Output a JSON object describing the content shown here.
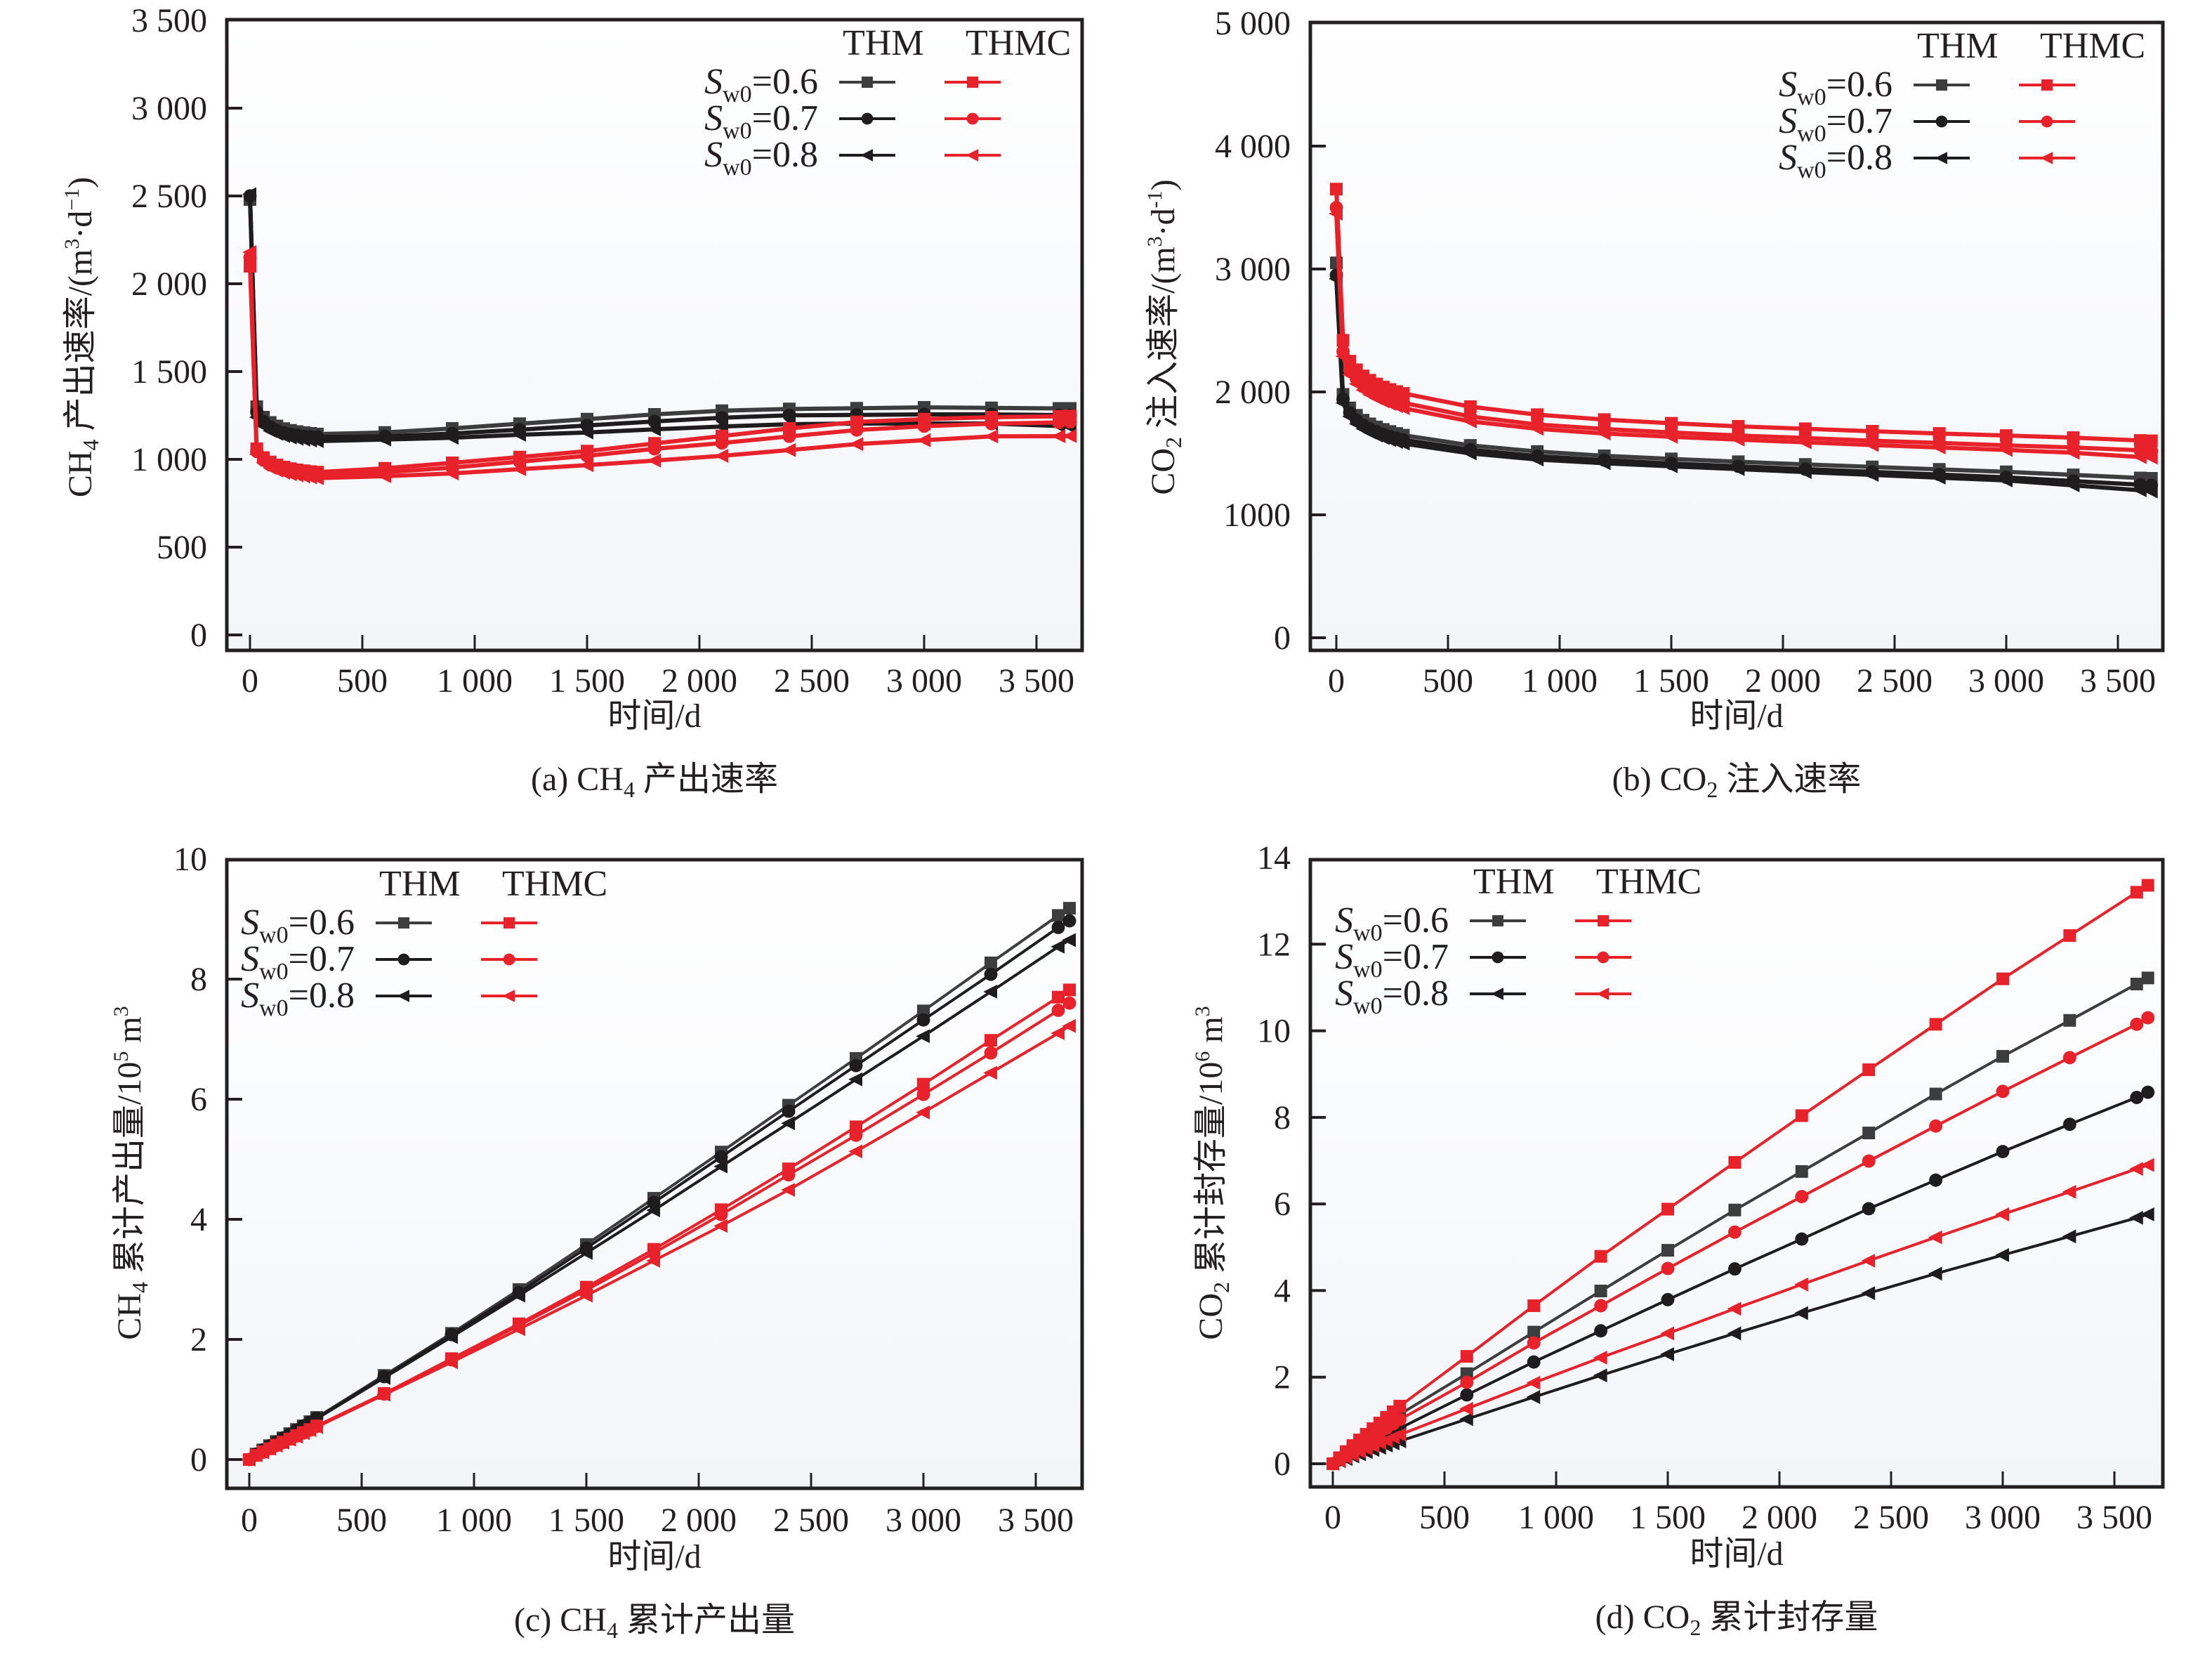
{
  "colors": {
    "thm_06": "#3d3d3d",
    "thm": "#1f1c1d",
    "thmc": "#e8222b",
    "axis": "#231f20",
    "plot_bg_top": "#ffffff",
    "plot_bg_bottom": "#f3f5f9"
  },
  "legend": {
    "col_thm": "THM",
    "col_thmc": "THMC",
    "rows": [
      {
        "symbol": "S",
        "sub": "w0",
        "value": "=0.6",
        "marker": "square"
      },
      {
        "symbol": "S",
        "sub": "w0",
        "value": "=0.7",
        "marker": "circle"
      },
      {
        "symbol": "S",
        "sub": "w0",
        "value": "=0.8",
        "marker": "triangle-left"
      }
    ]
  },
  "chart_data": [
    {
      "id": "a",
      "type": "line",
      "caption": {
        "prefix": "(a) CH",
        "sub": "4",
        "suffix": " 产出速率"
      },
      "xlabel": "时间/d",
      "ylabel": {
        "prefix": "CH",
        "sub": "4",
        "mid": " 产出速率/(m",
        "sup1": "3",
        "mid2": "·d",
        "sup2": "−1",
        "suffix": ")"
      },
      "xlim": [
        -100,
        3700
      ],
      "ylim": [
        -100,
        3500
      ],
      "xticks": [
        0,
        500,
        1000,
        1500,
        2000,
        2500,
        3000,
        3500
      ],
      "xtick_labels": [
        "0",
        "500",
        "1 000",
        "1 500",
        "2 000",
        "2 500",
        "3 000",
        "3 500"
      ],
      "yticks": [
        0,
        500,
        1000,
        1500,
        2000,
        2500,
        3000,
        3500
      ],
      "ytick_labels": [
        "0",
        "500",
        "1 000",
        "1 500",
        "2 000",
        "2 500",
        "3 000",
        "3 500"
      ],
      "legend_position": "top-right",
      "x": [
        0,
        30,
        60,
        90,
        120,
        150,
        180,
        210,
        240,
        270,
        300,
        600,
        900,
        1200,
        1500,
        1800,
        2100,
        2400,
        2700,
        3000,
        3300,
        3600,
        3650
      ],
      "series": [
        {
          "name": "THM Sw0=0.6",
          "model": "THM",
          "marker": "square",
          "values": [
            2480,
            1300,
            1240,
            1210,
            1190,
            1175,
            1165,
            1158,
            1152,
            1148,
            1144,
            1153,
            1176,
            1203,
            1229,
            1256,
            1277,
            1287,
            1291,
            1296,
            1293,
            1290,
            1290
          ]
        },
        {
          "name": "THM Sw0=0.7",
          "model": "THM",
          "marker": "circle",
          "values": [
            2500,
            1270,
            1215,
            1185,
            1165,
            1152,
            1143,
            1137,
            1132,
            1129,
            1127,
            1131,
            1147,
            1169,
            1193,
            1216,
            1237,
            1251,
            1253,
            1256,
            1256,
            1252,
            1251
          ]
        },
        {
          "name": "THM Sw0=0.8",
          "model": "THM",
          "marker": "triangle-left",
          "values": [
            2510,
            1240,
            1190,
            1162,
            1145,
            1133,
            1124,
            1117,
            1112,
            1107,
            1104,
            1113,
            1123,
            1140,
            1153,
            1171,
            1187,
            1200,
            1204,
            1204,
            1204,
            1190,
            1184
          ]
        },
        {
          "name": "THMC Sw0=0.6",
          "model": "THMC",
          "marker": "square",
          "values": [
            2100,
            1060,
            1010,
            985,
            968,
            956,
            947,
            940,
            935,
            930,
            927,
            949,
            980,
            1013,
            1047,
            1091,
            1133,
            1176,
            1213,
            1229,
            1240,
            1245,
            1247
          ]
        },
        {
          "name": "THMC Sw0=0.7",
          "model": "THMC",
          "marker": "circle",
          "values": [
            2150,
            1045,
            995,
            968,
            952,
            941,
            932,
            926,
            921,
            917,
            913,
            927,
            953,
            987,
            1020,
            1060,
            1093,
            1131,
            1167,
            1189,
            1203,
            1210,
            1213
          ]
        },
        {
          "name": "THMC Sw0=0.8",
          "model": "THMC",
          "marker": "triangle-left",
          "values": [
            2180,
            1030,
            980,
            952,
            936,
            924,
            915,
            908,
            902,
            897,
            893,
            904,
            920,
            944,
            967,
            993,
            1020,
            1053,
            1087,
            1109,
            1131,
            1132,
            1133
          ]
        }
      ]
    },
    {
      "id": "b",
      "type": "line",
      "caption": {
        "prefix": "(b) CO",
        "sub": "2",
        "suffix": " 注入速率"
      },
      "xlabel": "时间/d",
      "ylabel": {
        "prefix": "CO",
        "sub": "2",
        "mid": " 注入速率/(m",
        "sup1": "3",
        "mid2": "·d",
        "sup2": "-1",
        "suffix": ")"
      },
      "xlim": [
        -100,
        3700
      ],
      "ylim": [
        -100,
        5000
      ],
      "xticks": [
        0,
        500,
        1000,
        1500,
        2000,
        2500,
        3000,
        3500
      ],
      "xtick_labels": [
        "0",
        "500",
        "1 000",
        "1 500",
        "2 000",
        "2 500",
        "3 000",
        "3 500"
      ],
      "yticks": [
        0,
        1000,
        2000,
        3000,
        4000,
        5000
      ],
      "ytick_labels": [
        "0",
        "1000",
        "2 000",
        "3 000",
        "4 000",
        "5 000"
      ],
      "legend_position": "top-right",
      "x": [
        0,
        30,
        60,
        90,
        120,
        150,
        180,
        210,
        240,
        270,
        300,
        600,
        900,
        1200,
        1500,
        1800,
        2100,
        2400,
        2700,
        3000,
        3300,
        3600,
        3650
      ],
      "series": [
        {
          "name": "THM Sw0=0.6",
          "model": "THM",
          "marker": "square",
          "values": [
            3050,
            1980,
            1870,
            1810,
            1770,
            1740,
            1715,
            1695,
            1678,
            1662,
            1648,
            1565,
            1515,
            1480,
            1455,
            1432,
            1410,
            1390,
            1370,
            1350,
            1325,
            1300,
            1297
          ]
        },
        {
          "name": "THM Sw0=0.7",
          "model": "THM",
          "marker": "circle",
          "values": [
            2950,
            1940,
            1830,
            1770,
            1730,
            1700,
            1676,
            1656,
            1639,
            1624,
            1611,
            1530,
            1478,
            1445,
            1418,
            1395,
            1372,
            1350,
            1328,
            1305,
            1275,
            1245,
            1240
          ]
        },
        {
          "name": "THM Sw0=0.8",
          "model": "THM",
          "marker": "triangle-left",
          "values": [
            2920,
            1910,
            1800,
            1740,
            1700,
            1670,
            1645,
            1625,
            1608,
            1593,
            1580,
            1500,
            1450,
            1420,
            1395,
            1372,
            1348,
            1325,
            1302,
            1280,
            1240,
            1200,
            1190
          ]
        },
        {
          "name": "THMC Sw0=0.6",
          "model": "THMC",
          "marker": "square",
          "values": [
            3650,
            2420,
            2250,
            2180,
            2130,
            2095,
            2065,
            2040,
            2020,
            2003,
            1988,
            1880,
            1815,
            1775,
            1745,
            1720,
            1700,
            1680,
            1662,
            1645,
            1628,
            1605,
            1602
          ]
        },
        {
          "name": "THMC Sw0=0.7",
          "model": "THMC",
          "marker": "circle",
          "values": [
            3500,
            2330,
            2180,
            2105,
            2055,
            2020,
            1990,
            1965,
            1944,
            1927,
            1912,
            1800,
            1735,
            1698,
            1670,
            1646,
            1625,
            1603,
            1585,
            1565,
            1548,
            1525,
            1520
          ]
        },
        {
          "name": "THMC Sw0=0.8",
          "model": "THMC",
          "marker": "triangle-left",
          "values": [
            3450,
            2290,
            2140,
            2065,
            2015,
            1978,
            1948,
            1923,
            1902,
            1884,
            1868,
            1760,
            1700,
            1662,
            1635,
            1612,
            1590,
            1568,
            1548,
            1528,
            1505,
            1470,
            1465
          ]
        }
      ]
    },
    {
      "id": "c",
      "type": "line",
      "caption": {
        "prefix": "(c) CH",
        "sub": "4",
        "suffix": " 累计产出量"
      },
      "xlabel": "时间/d",
      "ylabel": {
        "prefix": "CH",
        "sub": "4",
        "mid": " 累计产出量/10",
        "sup1": "5",
        "mid2": " m",
        "sup2": "3",
        "suffix": ""
      },
      "xlim": [
        -100,
        3700
      ],
      "ylim": [
        -0.5,
        10
      ],
      "xticks": [
        0,
        500,
        1000,
        1500,
        2000,
        2500,
        3000,
        3500
      ],
      "xtick_labels": [
        "0",
        "500",
        "1 000",
        "1 500",
        "2 000",
        "2 500",
        "3 000",
        "3 500"
      ],
      "yticks": [
        0,
        2,
        4,
        6,
        8,
        10
      ],
      "ytick_labels": [
        "0",
        "2",
        "4",
        "6",
        "8",
        "10"
      ],
      "legend_position": "top-left",
      "x": [
        0,
        30,
        60,
        90,
        120,
        150,
        180,
        210,
        240,
        270,
        300,
        600,
        900,
        1200,
        1500,
        1800,
        2100,
        2400,
        2700,
        3000,
        3300,
        3600,
        3650
      ],
      "series": [
        {
          "name": "THM Sw0=0.6",
          "model": "THM",
          "marker": "square",
          "values": [
            0,
            0.09,
            0.16,
            0.23,
            0.3,
            0.36,
            0.43,
            0.5,
            0.56,
            0.63,
            0.7,
            1.4,
            2.1,
            2.83,
            3.58,
            4.35,
            5.12,
            5.9,
            6.68,
            7.47,
            8.27,
            9.06,
            9.18
          ]
        },
        {
          "name": "THM Sw0=0.7",
          "model": "THM",
          "marker": "circle",
          "values": [
            0,
            0.09,
            0.16,
            0.23,
            0.29,
            0.36,
            0.42,
            0.49,
            0.56,
            0.62,
            0.69,
            1.38,
            2.08,
            2.78,
            3.52,
            4.28,
            5.04,
            5.8,
            6.56,
            7.32,
            8.08,
            8.86,
            8.97
          ]
        },
        {
          "name": "THM Sw0=0.8",
          "model": "THM",
          "marker": "triangle-left",
          "values": [
            0,
            0.09,
            0.16,
            0.22,
            0.29,
            0.35,
            0.42,
            0.48,
            0.55,
            0.61,
            0.68,
            1.36,
            2.04,
            2.73,
            3.44,
            4.15,
            4.88,
            5.6,
            6.33,
            7.05,
            7.79,
            8.54,
            8.65
          ]
        },
        {
          "name": "THMC Sw0=0.6",
          "model": "THMC",
          "marker": "square",
          "values": [
            0,
            0.07,
            0.13,
            0.18,
            0.24,
            0.29,
            0.34,
            0.4,
            0.45,
            0.5,
            0.56,
            1.1,
            1.68,
            2.26,
            2.87,
            3.5,
            4.16,
            4.84,
            5.54,
            6.25,
            6.98,
            7.7,
            7.82
          ]
        },
        {
          "name": "THMC Sw0=0.7",
          "model": "THMC",
          "marker": "circle",
          "values": [
            0,
            0.07,
            0.12,
            0.18,
            0.23,
            0.28,
            0.34,
            0.39,
            0.44,
            0.49,
            0.55,
            1.09,
            1.66,
            2.23,
            2.82,
            3.44,
            4.08,
            4.74,
            5.4,
            6.08,
            6.77,
            7.48,
            7.6
          ]
        },
        {
          "name": "THMC Sw0=0.8",
          "model": "THMC",
          "marker": "triangle-left",
          "values": [
            0,
            0.07,
            0.12,
            0.18,
            0.23,
            0.28,
            0.33,
            0.38,
            0.44,
            0.49,
            0.54,
            1.08,
            1.62,
            2.17,
            2.73,
            3.31,
            3.89,
            4.49,
            5.13,
            5.78,
            6.44,
            7.1,
            7.22
          ]
        }
      ]
    },
    {
      "id": "d",
      "type": "line",
      "caption": {
        "prefix": "(d) CO",
        "sub": "2",
        "suffix": " 累计封存量"
      },
      "xlabel": "时间/d",
      "ylabel": {
        "prefix": "CO",
        "sub": "2",
        "mid": " 累计封存量/10",
        "sup1": "6",
        "mid2": " m",
        "sup2": "3",
        "suffix": ""
      },
      "xlim": [
        -100,
        3700
      ],
      "ylim": [
        -0.5,
        14
      ],
      "xticks": [
        0,
        500,
        1000,
        1500,
        2000,
        2500,
        3000,
        3500
      ],
      "xtick_labels": [
        "0",
        "500",
        "1 000",
        "1 500",
        "2 000",
        "2 500",
        "3 000",
        "3 500"
      ],
      "yticks": [
        0,
        2,
        4,
        6,
        8,
        10,
        12,
        14
      ],
      "ytick_labels": [
        "0",
        "2",
        "4",
        "6",
        "8",
        "10",
        "12",
        "14"
      ],
      "legend_position": "top-left",
      "x": [
        0,
        30,
        60,
        90,
        120,
        150,
        180,
        210,
        240,
        270,
        300,
        600,
        900,
        1200,
        1500,
        1800,
        2100,
        2400,
        2700,
        3000,
        3300,
        3600,
        3650
      ],
      "series": [
        {
          "name": "THM Sw0=0.6",
          "model": "THM",
          "marker": "square",
          "values": [
            0,
            0.12,
            0.24,
            0.36,
            0.47,
            0.59,
            0.7,
            0.82,
            0.93,
            1.03,
            1.14,
            2.08,
            3.04,
            3.99,
            4.93,
            5.86,
            6.75,
            7.64,
            8.54,
            9.41,
            10.24,
            11.08,
            11.22
          ]
        },
        {
          "name": "THM Sw0=0.7",
          "model": "THM",
          "marker": "circle",
          "values": [
            0,
            0.09,
            0.18,
            0.26,
            0.34,
            0.42,
            0.5,
            0.58,
            0.66,
            0.74,
            0.82,
            1.59,
            2.35,
            3.07,
            3.79,
            4.5,
            5.19,
            5.89,
            6.55,
            7.21,
            7.84,
            8.46,
            8.58
          ]
        },
        {
          "name": "THM Sw0=0.8",
          "model": "THM",
          "marker": "triangle-left",
          "values": [
            0,
            0.06,
            0.11,
            0.17,
            0.22,
            0.27,
            0.32,
            0.37,
            0.42,
            0.47,
            0.52,
            1.03,
            1.54,
            2.04,
            2.53,
            3.01,
            3.48,
            3.94,
            4.39,
            4.82,
            5.25,
            5.68,
            5.76
          ]
        },
        {
          "name": "THMC Sw0=0.6",
          "model": "THMC",
          "marker": "square",
          "values": [
            0,
            0.14,
            0.28,
            0.42,
            0.55,
            0.68,
            0.81,
            0.94,
            1.07,
            1.2,
            1.33,
            2.48,
            3.65,
            4.79,
            5.88,
            6.96,
            8.04,
            9.1,
            10.15,
            11.2,
            12.2,
            13.2,
            13.36
          ]
        },
        {
          "name": "THMC Sw0=0.7",
          "model": "THMC",
          "marker": "circle",
          "values": [
            0,
            0.11,
            0.22,
            0.32,
            0.42,
            0.52,
            0.62,
            0.72,
            0.82,
            0.92,
            1.02,
            1.88,
            2.79,
            3.65,
            4.51,
            5.35,
            6.17,
            6.99,
            7.8,
            8.6,
            9.38,
            10.15,
            10.3
          ]
        },
        {
          "name": "THMC Sw0=0.8",
          "model": "THMC",
          "marker": "triangle-left",
          "values": [
            0,
            0.07,
            0.14,
            0.21,
            0.28,
            0.35,
            0.41,
            0.48,
            0.54,
            0.61,
            0.67,
            1.27,
            1.87,
            2.45,
            3.01,
            3.58,
            4.14,
            4.69,
            5.23,
            5.76,
            6.28,
            6.81,
            6.9
          ]
        }
      ]
    }
  ]
}
